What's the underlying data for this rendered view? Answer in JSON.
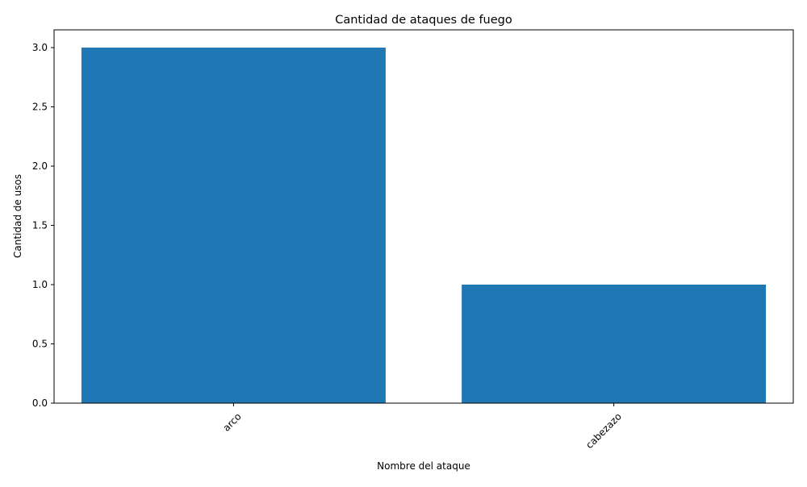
{
  "colors": {
    "bar": "#1f77b4",
    "axis": "#000000",
    "background": "#ffffff"
  },
  "chart_data": {
    "type": "bar",
    "title": "Cantidad de ataques de fuego",
    "xlabel": "Nombre del ataque",
    "ylabel": "Cantidad de usos",
    "categories": [
      "arco",
      "cabezazo"
    ],
    "values": [
      3,
      1
    ],
    "ylim": [
      0,
      3.15
    ],
    "yticks": [
      0.0,
      0.5,
      1.0,
      1.5,
      2.0,
      2.5,
      3.0
    ],
    "ytick_labels": [
      "0.0",
      "0.5",
      "1.0",
      "1.5",
      "2.0",
      "2.5",
      "3.0"
    ],
    "xtick_rotation": 45,
    "grid": false,
    "legend": "none"
  }
}
